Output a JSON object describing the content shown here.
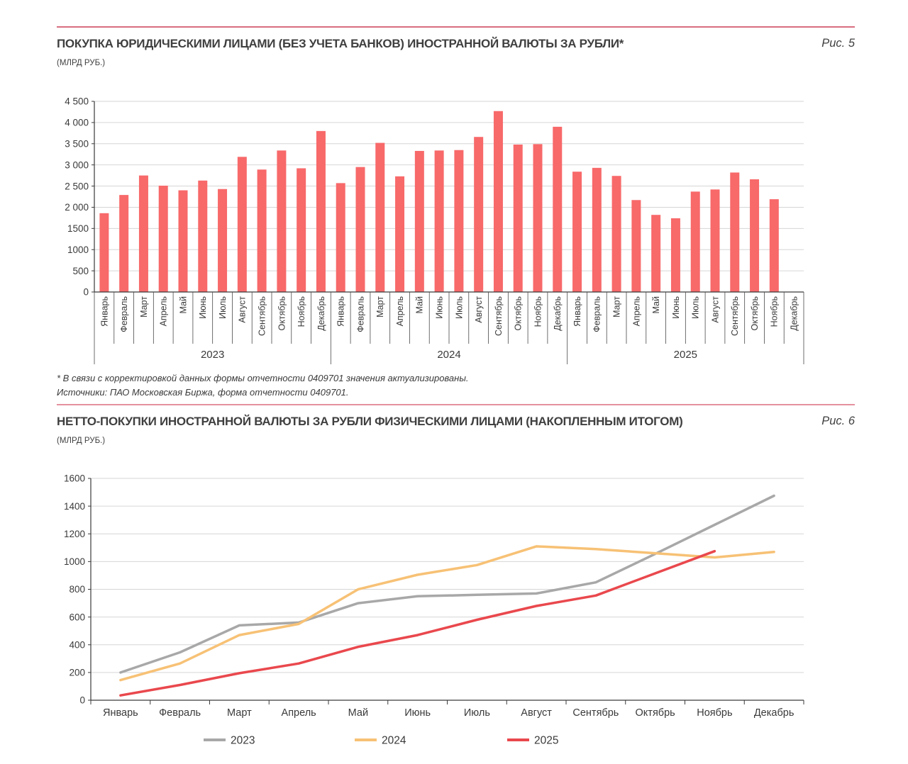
{
  "fig5": {
    "fig_label": "Рис. 5",
    "title": "ПОКУПКА ЮРИДИЧЕСКИМИ ЛИЦАМИ (БЕЗ УЧЕТА БАНКОВ) ИНОСТРАННОЙ ВАЛЮТЫ ЗА РУБЛИ*",
    "subtitle": "(МЛРД РУБ.)",
    "footnote_line1": "* В связи с корректировкой данных формы отчетности 0409701 значения актуализированы.",
    "footnote_line2": "Источники: ПАО Московская Биржа, форма отчетности 0409701."
  },
  "fig6": {
    "fig_label": "Рис. 6",
    "title": "НЕТТО-ПОКУПКИ ИНОСТРАННОЙ ВАЛЮТЫ ЗА РУБЛИ ФИЗИЧЕСКИМИ ЛИЦАМИ (НАКОПЛЕННЫМ ИТОГОМ)",
    "subtitle": "(МЛРД РУБ.)"
  },
  "chart_data": [
    {
      "type": "bar",
      "figure": "Рис. 5",
      "title": "ПОКУПКА ЮРИДИЧЕСКИМИ ЛИЦАМИ (БЕЗ УЧЕТА БАНКОВ) ИНОСТРАННОЙ ВАЛЮТЫ ЗА РУБЛИ*",
      "unit": "МЛРД РУБ.",
      "ylim": [
        0,
        4500
      ],
      "ytick_step": 500,
      "ytick_labels": [
        "0",
        "500",
        "1000",
        "1500",
        "2 000",
        "2 500",
        "3 000",
        "3 500",
        "4 000",
        "4 500"
      ],
      "grid": true,
      "bar_color": "#f8696a",
      "months": [
        "Январь",
        "Февраль",
        "Март",
        "Апрель",
        "Май",
        "Июнь",
        "Июль",
        "Август",
        "Сентябрь",
        "Октябрь",
        "Ноябрь",
        "Декабрь"
      ],
      "series": [
        {
          "year": "2023",
          "values": [
            1860,
            2290,
            2750,
            2510,
            2400,
            2630,
            2430,
            3190,
            2890,
            3340,
            2920,
            3800
          ]
        },
        {
          "year": "2024",
          "values": [
            2570,
            2950,
            3520,
            2730,
            3330,
            3340,
            3350,
            3660,
            4270,
            3480,
            3490,
            3900
          ]
        },
        {
          "year": "2025",
          "values": [
            2840,
            2930,
            2740,
            2170,
            1820,
            1740,
            2370,
            2420,
            2820,
            2660,
            2190,
            null
          ]
        }
      ]
    },
    {
      "type": "line",
      "figure": "Рис. 6",
      "title": "НЕТТО-ПОКУПКИ ИНОСТРАННОЙ ВАЛЮТЫ ЗА РУБЛИ ФИЗИЧЕСКИМИ ЛИЦАМИ (НАКОПЛЕННЫМ ИТОГОМ)",
      "unit": "МЛРД РУБ.",
      "ylim": [
        0,
        1600
      ],
      "ytick_step": 200,
      "ytick_labels": [
        "0",
        "200",
        "400",
        "600",
        "800",
        "1000",
        "1200",
        "1400",
        "1600"
      ],
      "grid": true,
      "legend_position": "bottom",
      "categories": [
        "Январь",
        "Февраль",
        "Март",
        "Апрель",
        "Май",
        "Июнь",
        "Июль",
        "Август",
        "Сентябрь",
        "Октябрь",
        "Ноябрь",
        "Декабрь"
      ],
      "series": [
        {
          "name": "2023",
          "color": "#a8a8a8",
          "values": [
            200,
            345,
            540,
            560,
            700,
            750,
            760,
            770,
            850,
            1055,
            1265,
            1475
          ]
        },
        {
          "name": "2024",
          "color": "#f7c175",
          "values": [
            145,
            265,
            470,
            550,
            800,
            905,
            975,
            1110,
            1090,
            1060,
            1030,
            1070
          ]
        },
        {
          "name": "2025",
          "color": "#e9484d",
          "values": [
            35,
            110,
            195,
            265,
            385,
            470,
            580,
            680,
            755,
            915,
            1075,
            null
          ]
        }
      ]
    }
  ]
}
